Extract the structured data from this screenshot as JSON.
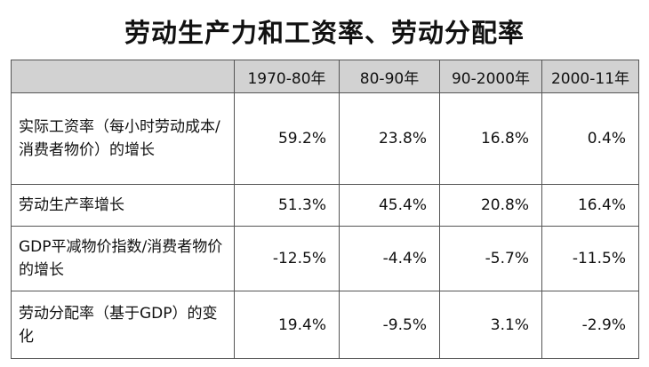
{
  "chart_data": {
    "type": "table",
    "title": "劳动生产力和工资率、劳动分配率",
    "columns": [
      "1970-80年",
      "80-90年",
      "90-2000年",
      "2000-11年"
    ],
    "rows": [
      {
        "label": "实际工资率（每小时劳动成本/消费者物价）的增长",
        "values": [
          "59.2%",
          "23.8%",
          "16.8%",
          "0.4%"
        ]
      },
      {
        "label": "劳动生产率增长",
        "values": [
          "51.3%",
          "45.4%",
          "20.8%",
          "16.4%"
        ]
      },
      {
        "label": "GDP平减物价指数/消费者物价的增长",
        "values": [
          "-12.5%",
          "-4.4%",
          "-5.7%",
          "-11.5%"
        ]
      },
      {
        "label": "劳动分配率（基于GDP）的变化",
        "values": [
          "19.4%",
          "-9.5%",
          "3.1%",
          "-2.9%"
        ]
      }
    ]
  },
  "colors": {
    "header_bg": "#d2d2d2",
    "border": "#555555",
    "text": "#111111"
  }
}
